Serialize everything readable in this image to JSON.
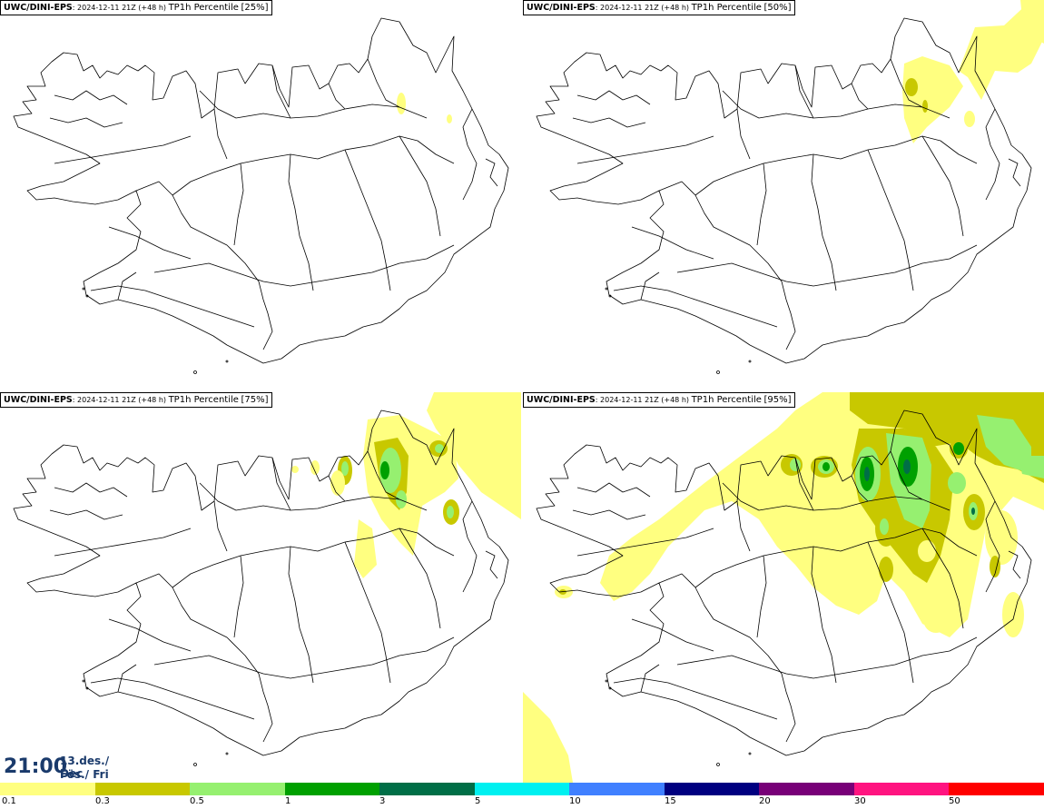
{
  "panels": [
    {
      "model": "UWC/DINI-EPS",
      "run": "2024-12-11 21Z (+48 h)",
      "field": "TP1h Percentile",
      "pct": "[25%]"
    },
    {
      "model": "UWC/DINI-EPS",
      "run": "2024-12-11 21Z (+48 h)",
      "field": "TP1h Percentile",
      "pct": "[50%]"
    },
    {
      "model": "UWC/DINI-EPS",
      "run": "2024-12-11 21Z (+48 h)",
      "field": "TP1h Percentile",
      "pct": "[75%]"
    },
    {
      "model": "UWC/DINI-EPS",
      "run": "2024-12-11 21Z (+48 h)",
      "field": "TP1h Percentile",
      "pct": "[95%]"
    }
  ],
  "valid_time": {
    "time": "21:00",
    "date_line": "13.des./ Dec",
    "day_line": "Fös./ Fri"
  },
  "legend": {
    "colors": [
      "#ffff80",
      "#c8c800",
      "#96f070",
      "#00a000",
      "#006e46",
      "#00f0f0",
      "#4080ff",
      "#000080",
      "#780078",
      "#ff1480",
      "#ff0000"
    ],
    "ticks": [
      "0.1",
      "0.3",
      "0.5",
      "1",
      "3",
      "5",
      "10",
      "15",
      "20",
      "30",
      "50"
    ]
  }
}
